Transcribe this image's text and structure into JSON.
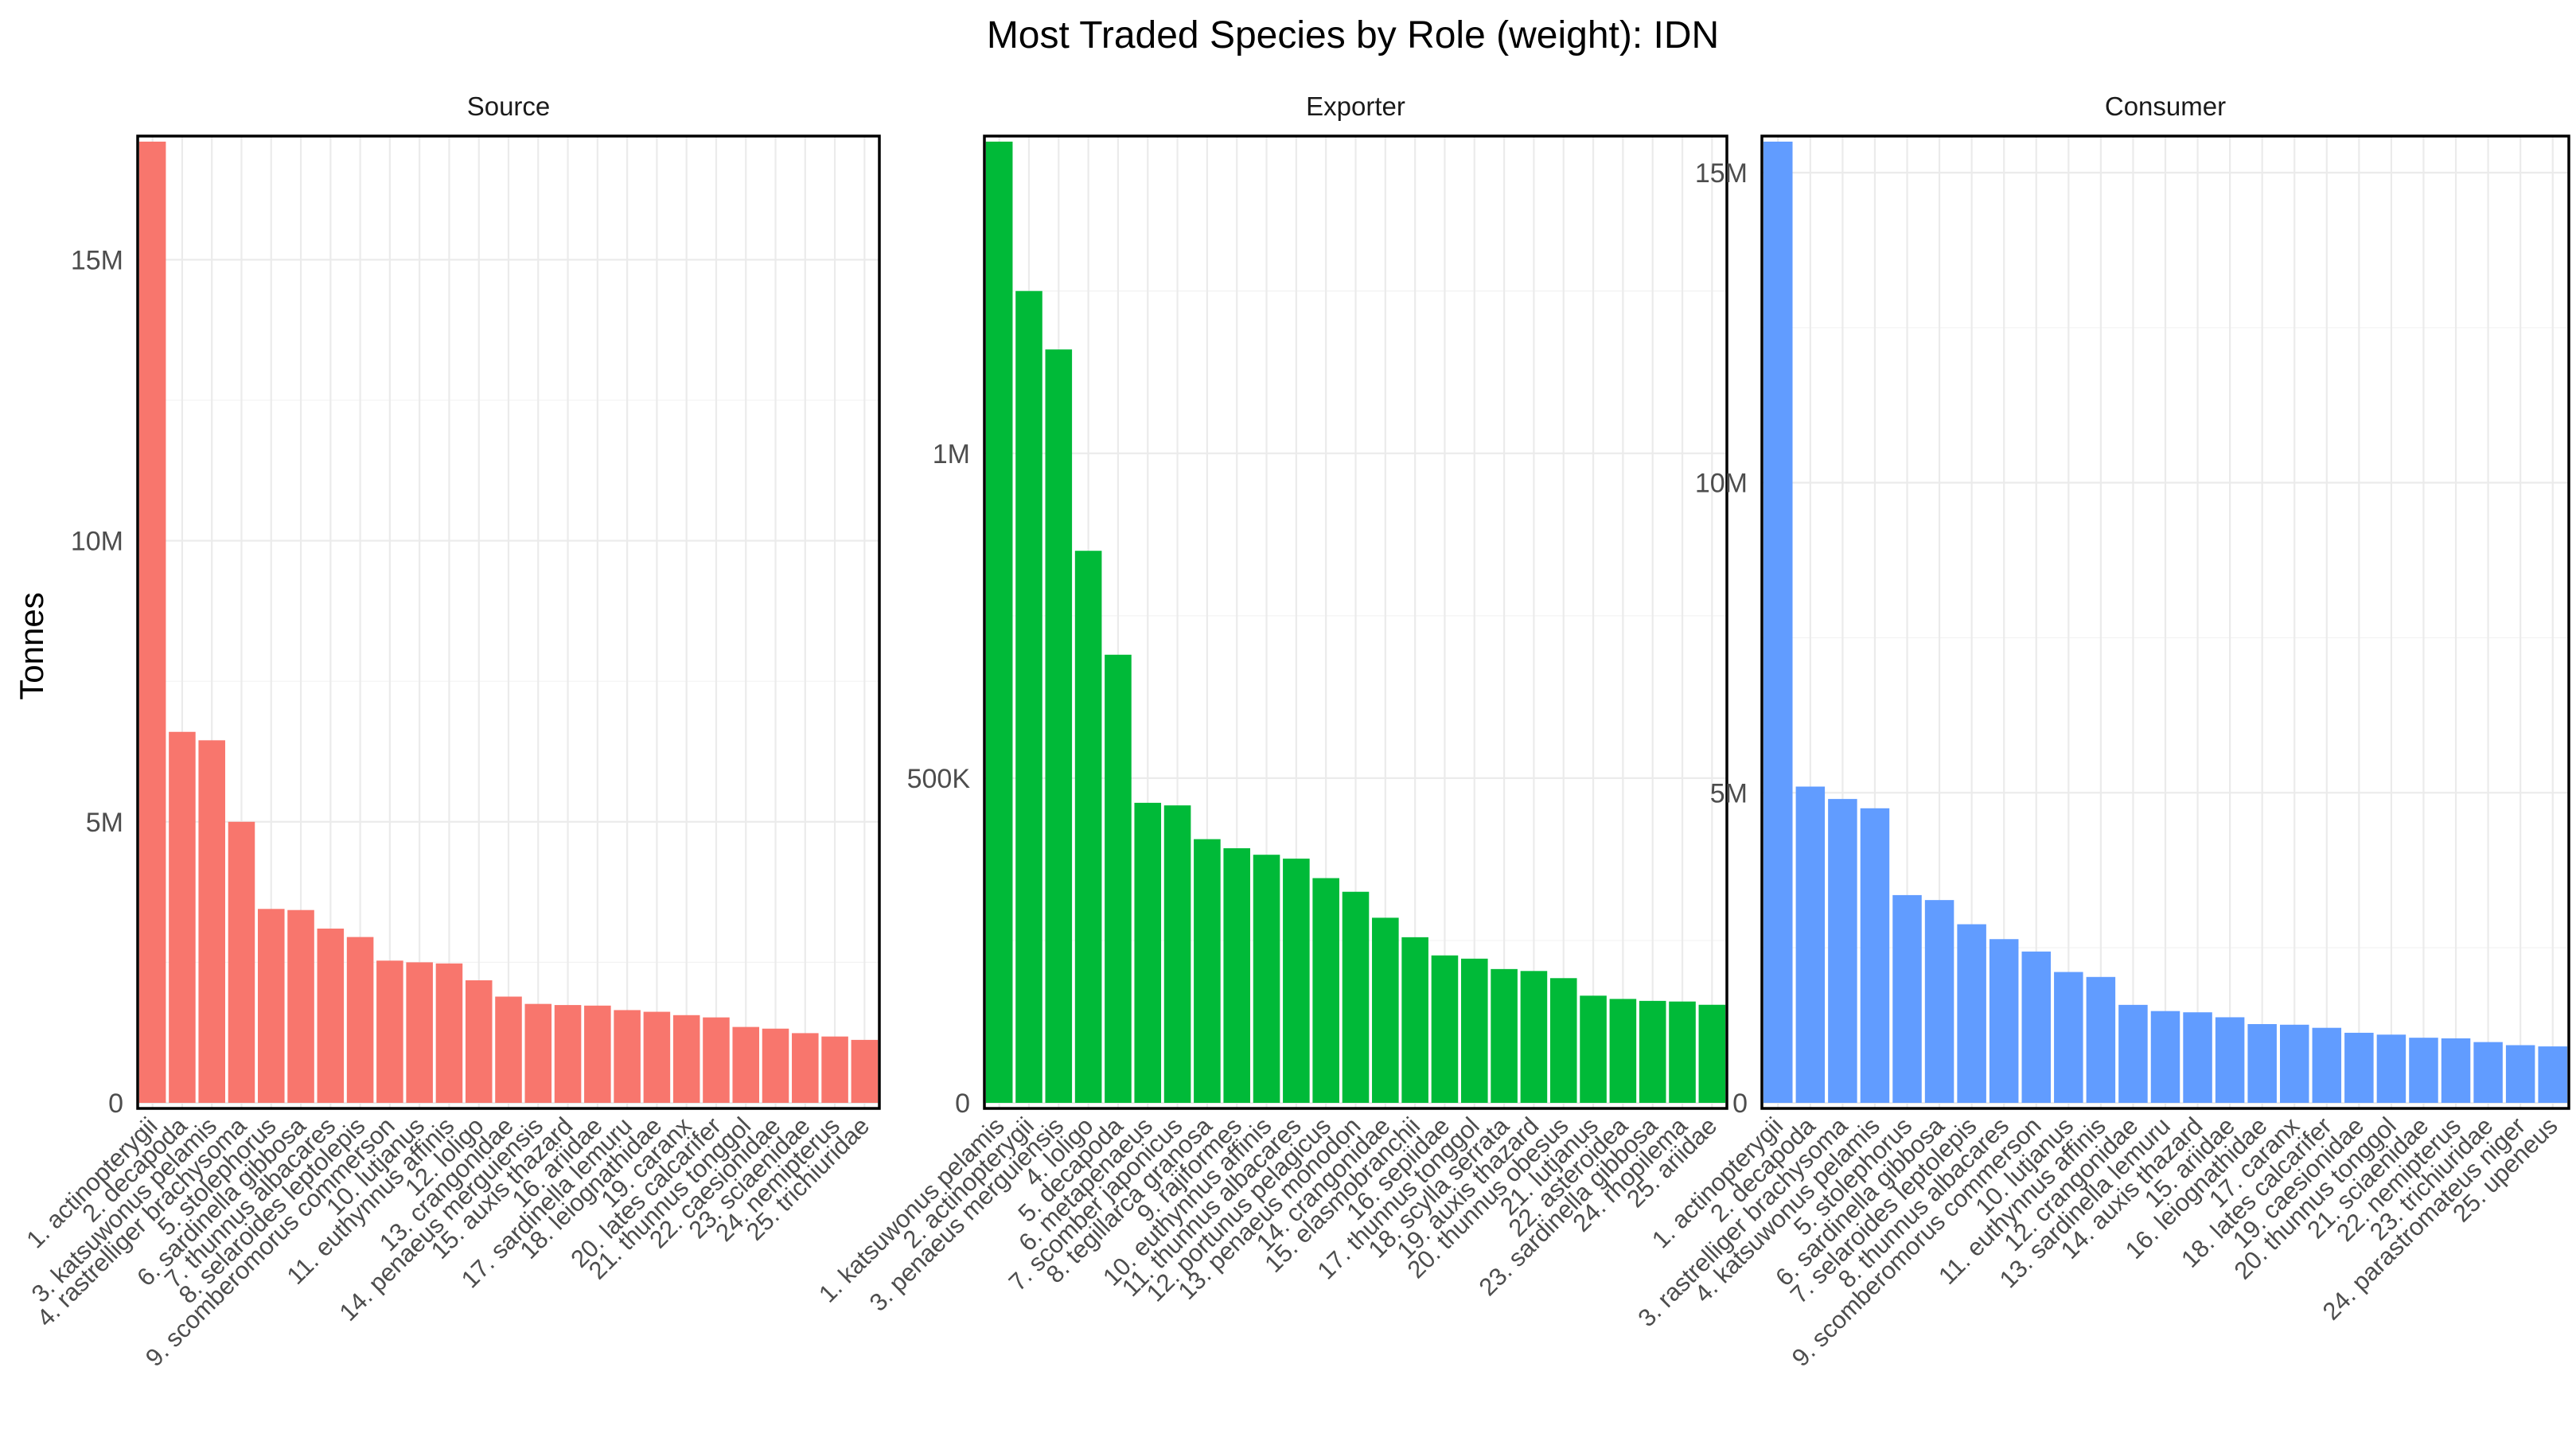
{
  "chart_data": {
    "type": "bar",
    "title": "Most Traded Species by Role (weight): IDN",
    "ylabel": "Tonnes",
    "xlabel": "",
    "facets": [
      {
        "name": "Source",
        "color": "#F8766D",
        "ylim": [
          0,
          17100000
        ],
        "yticks": [
          {
            "value": 0,
            "label": "0"
          },
          {
            "value": 5000000,
            "label": "5M"
          },
          {
            "value": 10000000,
            "label": "10M"
          },
          {
            "value": 15000000,
            "label": "15M"
          }
        ],
        "categories": [
          "1. actinopterygii",
          "2. decapoda",
          "3. katsuwonus pelamis",
          "4. rastrelliger brachysoma",
          "5. stolephorus",
          "6. sardinella gibbosa",
          "7. thunnus albacares",
          "8. selaroides leptolepis",
          "9. scomberomorus commerson",
          "10. lutjanus",
          "11. euthynnus affinis",
          "12. loligo",
          "13. crangonidae",
          "14. penaeus merguiensis",
          "15. auxis thazard",
          "16. ariidae",
          "17. sardinella lemuru",
          "18. leiognathidae",
          "19. caranx",
          "20. lates calcarifer",
          "21. thunnus tonggol",
          "22. caesionidae",
          "23. sciaenidae",
          "24. nemipterus",
          "25. trichiuridae"
        ],
        "values": [
          17100000,
          6600000,
          6450000,
          5000000,
          3450000,
          3430000,
          3100000,
          2950000,
          2530000,
          2500000,
          2480000,
          2180000,
          1890000,
          1760000,
          1740000,
          1730000,
          1650000,
          1620000,
          1560000,
          1520000,
          1350000,
          1320000,
          1240000,
          1180000,
          1120000
        ]
      },
      {
        "name": "Exporter",
        "color": "#00BA38",
        "ylim": [
          0,
          1480000
        ],
        "yticks": [
          {
            "value": 0,
            "label": "0"
          },
          {
            "value": 500000,
            "label": "500K"
          },
          {
            "value": 1000000,
            "label": "1M"
          }
        ],
        "categories": [
          "1. katsuwonus pelamis",
          "2. actinopterygii",
          "3. penaeus merguiensis",
          "4. loligo",
          "5. decapoda",
          "6. metapenaeus",
          "7. scomber japonicus",
          "8. tegillarca granosa",
          "9. rajiformes",
          "10. euthynnus affinis",
          "11. thunnus albacares",
          "12. portunus pelagicus",
          "13. penaeus monodon",
          "14. crangonidae",
          "15. elasmobranchii",
          "16. sepiidae",
          "17. thunnus tonggol",
          "18. scylla serrata",
          "19. auxis thazard",
          "20. thunnus obesus",
          "21. lutjanus",
          "22. asteroidea",
          "23. sardinella gibbosa",
          "24. rhopilema",
          "25. ariidae"
        ],
        "values": [
          1480000,
          1250000,
          1160000,
          850000,
          690000,
          462000,
          458000,
          406000,
          392000,
          382000,
          376000,
          346000,
          325000,
          285000,
          255000,
          227000,
          222000,
          206000,
          203000,
          192000,
          165000,
          160000,
          157000,
          156000,
          151000
        ]
      },
      {
        "name": "Consumer",
        "color": "#619CFF",
        "ylim": [
          0,
          15500000
        ],
        "yticks": [
          {
            "value": 0,
            "label": "0"
          },
          {
            "value": 5000000,
            "label": "5M"
          },
          {
            "value": 10000000,
            "label": "10M"
          },
          {
            "value": 15000000,
            "label": "15M"
          }
        ],
        "categories": [
          "1. actinopterygii",
          "2. decapoda",
          "3. rastrelliger brachysoma",
          "4. katsuwonus pelamis",
          "5. stolephorus",
          "6. sardinella gibbosa",
          "7. selaroides leptolepis",
          "8. thunnus albacares",
          "9. scomberomorus commerson",
          "10. lutjanus",
          "11. euthynnus affinis",
          "12. crangonidae",
          "13. sardinella lemuru",
          "14. auxis thazard",
          "15. ariidae",
          "16. leiognathidae",
          "17. caranx",
          "18. lates calcarifer",
          "19. caesionidae",
          "20. thunnus tonggol",
          "21. sciaenidae",
          "22. nemipterus",
          "23. trichiuridae",
          "24. parastromateus niger",
          "25. upeneus"
        ],
        "values": [
          15500000,
          5100000,
          4900000,
          4750000,
          3350000,
          3270000,
          2880000,
          2640000,
          2440000,
          2110000,
          2030000,
          1580000,
          1480000,
          1460000,
          1380000,
          1270000,
          1260000,
          1210000,
          1130000,
          1100000,
          1050000,
          1040000,
          980000,
          930000,
          910000
        ]
      }
    ]
  }
}
